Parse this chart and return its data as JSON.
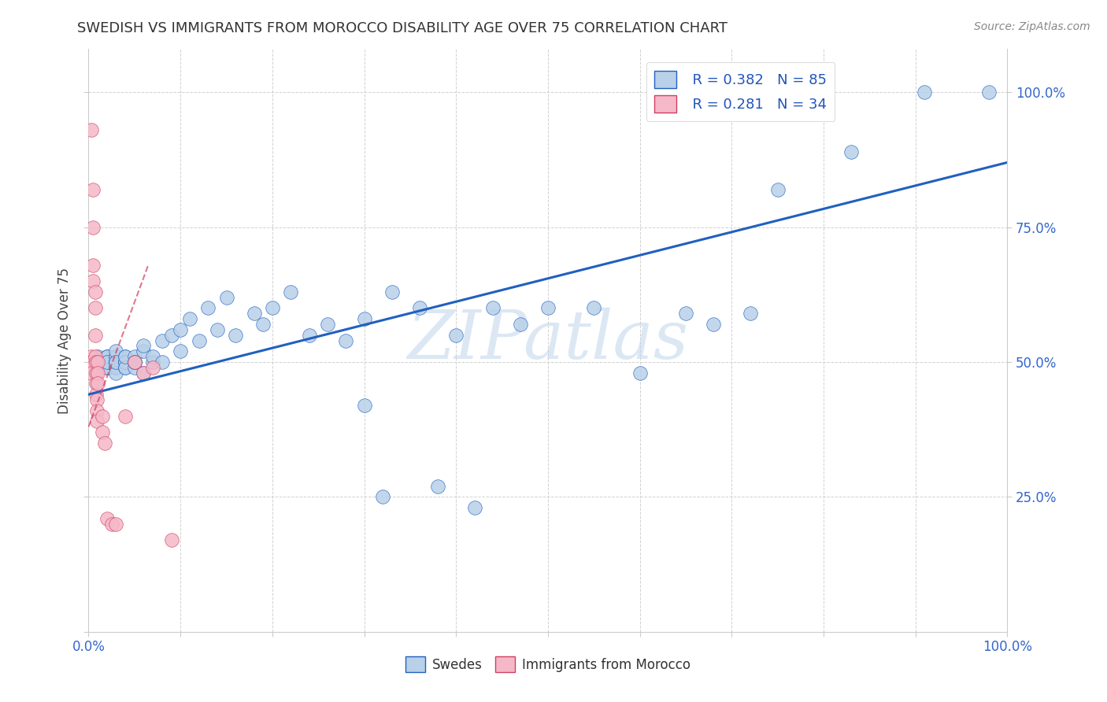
{
  "title": "SWEDISH VS IMMIGRANTS FROM MOROCCO DISABILITY AGE OVER 75 CORRELATION CHART",
  "source": "Source: ZipAtlas.com",
  "ylabel": "Disability Age Over 75",
  "legend_r_blue": "R = 0.382",
  "legend_n_blue": "N = 85",
  "legend_r_pink": "R = 0.281",
  "legend_n_pink": "N = 34",
  "legend_label_blue": "Swedes",
  "legend_label_pink": "Immigrants from Morocco",
  "watermark": "ZIPatlas",
  "blue_color": "#b8d0e8",
  "pink_color": "#f5b8c8",
  "trendline_blue_color": "#2060c0",
  "trendline_pink_color": "#d04060",
  "blue_x": [
    0.01,
    0.01,
    0.01,
    0.01,
    0.01,
    0.01,
    0.02,
    0.02,
    0.02,
    0.02,
    0.02,
    0.02,
    0.02,
    0.02,
    0.02,
    0.02,
    0.02,
    0.02,
    0.03,
    0.03,
    0.03,
    0.03,
    0.03,
    0.03,
    0.03,
    0.03,
    0.03,
    0.03,
    0.03,
    0.04,
    0.04,
    0.04,
    0.04,
    0.04,
    0.04,
    0.04,
    0.05,
    0.05,
    0.05,
    0.05,
    0.05,
    0.05,
    0.06,
    0.06,
    0.06,
    0.07,
    0.07,
    0.08,
    0.08,
    0.09,
    0.1,
    0.1,
    0.11,
    0.12,
    0.13,
    0.14,
    0.15,
    0.16,
    0.18,
    0.19,
    0.2,
    0.22,
    0.24,
    0.26,
    0.28,
    0.3,
    0.33,
    0.36,
    0.4,
    0.44,
    0.47,
    0.5,
    0.55,
    0.6,
    0.65,
    0.68,
    0.72,
    0.75,
    0.83,
    0.91,
    0.32,
    0.38,
    0.42,
    0.3,
    0.98
  ],
  "blue_y": [
    0.5,
    0.5,
    0.49,
    0.5,
    0.51,
    0.5,
    0.49,
    0.5,
    0.51,
    0.5,
    0.5,
    0.49,
    0.51,
    0.5,
    0.5,
    0.49,
    0.51,
    0.5,
    0.5,
    0.49,
    0.51,
    0.5,
    0.5,
    0.49,
    0.51,
    0.5,
    0.52,
    0.48,
    0.5,
    0.5,
    0.49,
    0.51,
    0.5,
    0.5,
    0.49,
    0.51,
    0.5,
    0.5,
    0.49,
    0.51,
    0.5,
    0.5,
    0.52,
    0.48,
    0.53,
    0.5,
    0.51,
    0.54,
    0.5,
    0.55,
    0.56,
    0.52,
    0.58,
    0.54,
    0.6,
    0.56,
    0.62,
    0.55,
    0.59,
    0.57,
    0.6,
    0.63,
    0.55,
    0.57,
    0.54,
    0.58,
    0.63,
    0.6,
    0.55,
    0.6,
    0.57,
    0.6,
    0.6,
    0.48,
    0.59,
    0.57,
    0.59,
    0.82,
    0.89,
    1.0,
    0.25,
    0.27,
    0.23,
    0.42,
    1.0
  ],
  "pink_x": [
    0.003,
    0.003,
    0.003,
    0.003,
    0.003,
    0.005,
    0.005,
    0.005,
    0.005,
    0.007,
    0.007,
    0.007,
    0.007,
    0.008,
    0.008,
    0.008,
    0.008,
    0.009,
    0.009,
    0.009,
    0.01,
    0.01,
    0.01,
    0.015,
    0.015,
    0.018,
    0.02,
    0.025,
    0.03,
    0.04,
    0.05,
    0.06,
    0.07,
    0.09
  ],
  "pink_y": [
    0.93,
    0.51,
    0.5,
    0.49,
    0.48,
    0.82,
    0.75,
    0.68,
    0.65,
    0.63,
    0.6,
    0.55,
    0.51,
    0.5,
    0.48,
    0.46,
    0.44,
    0.43,
    0.41,
    0.39,
    0.5,
    0.48,
    0.46,
    0.4,
    0.37,
    0.35,
    0.21,
    0.2,
    0.2,
    0.4,
    0.5,
    0.48,
    0.49,
    0.17
  ]
}
